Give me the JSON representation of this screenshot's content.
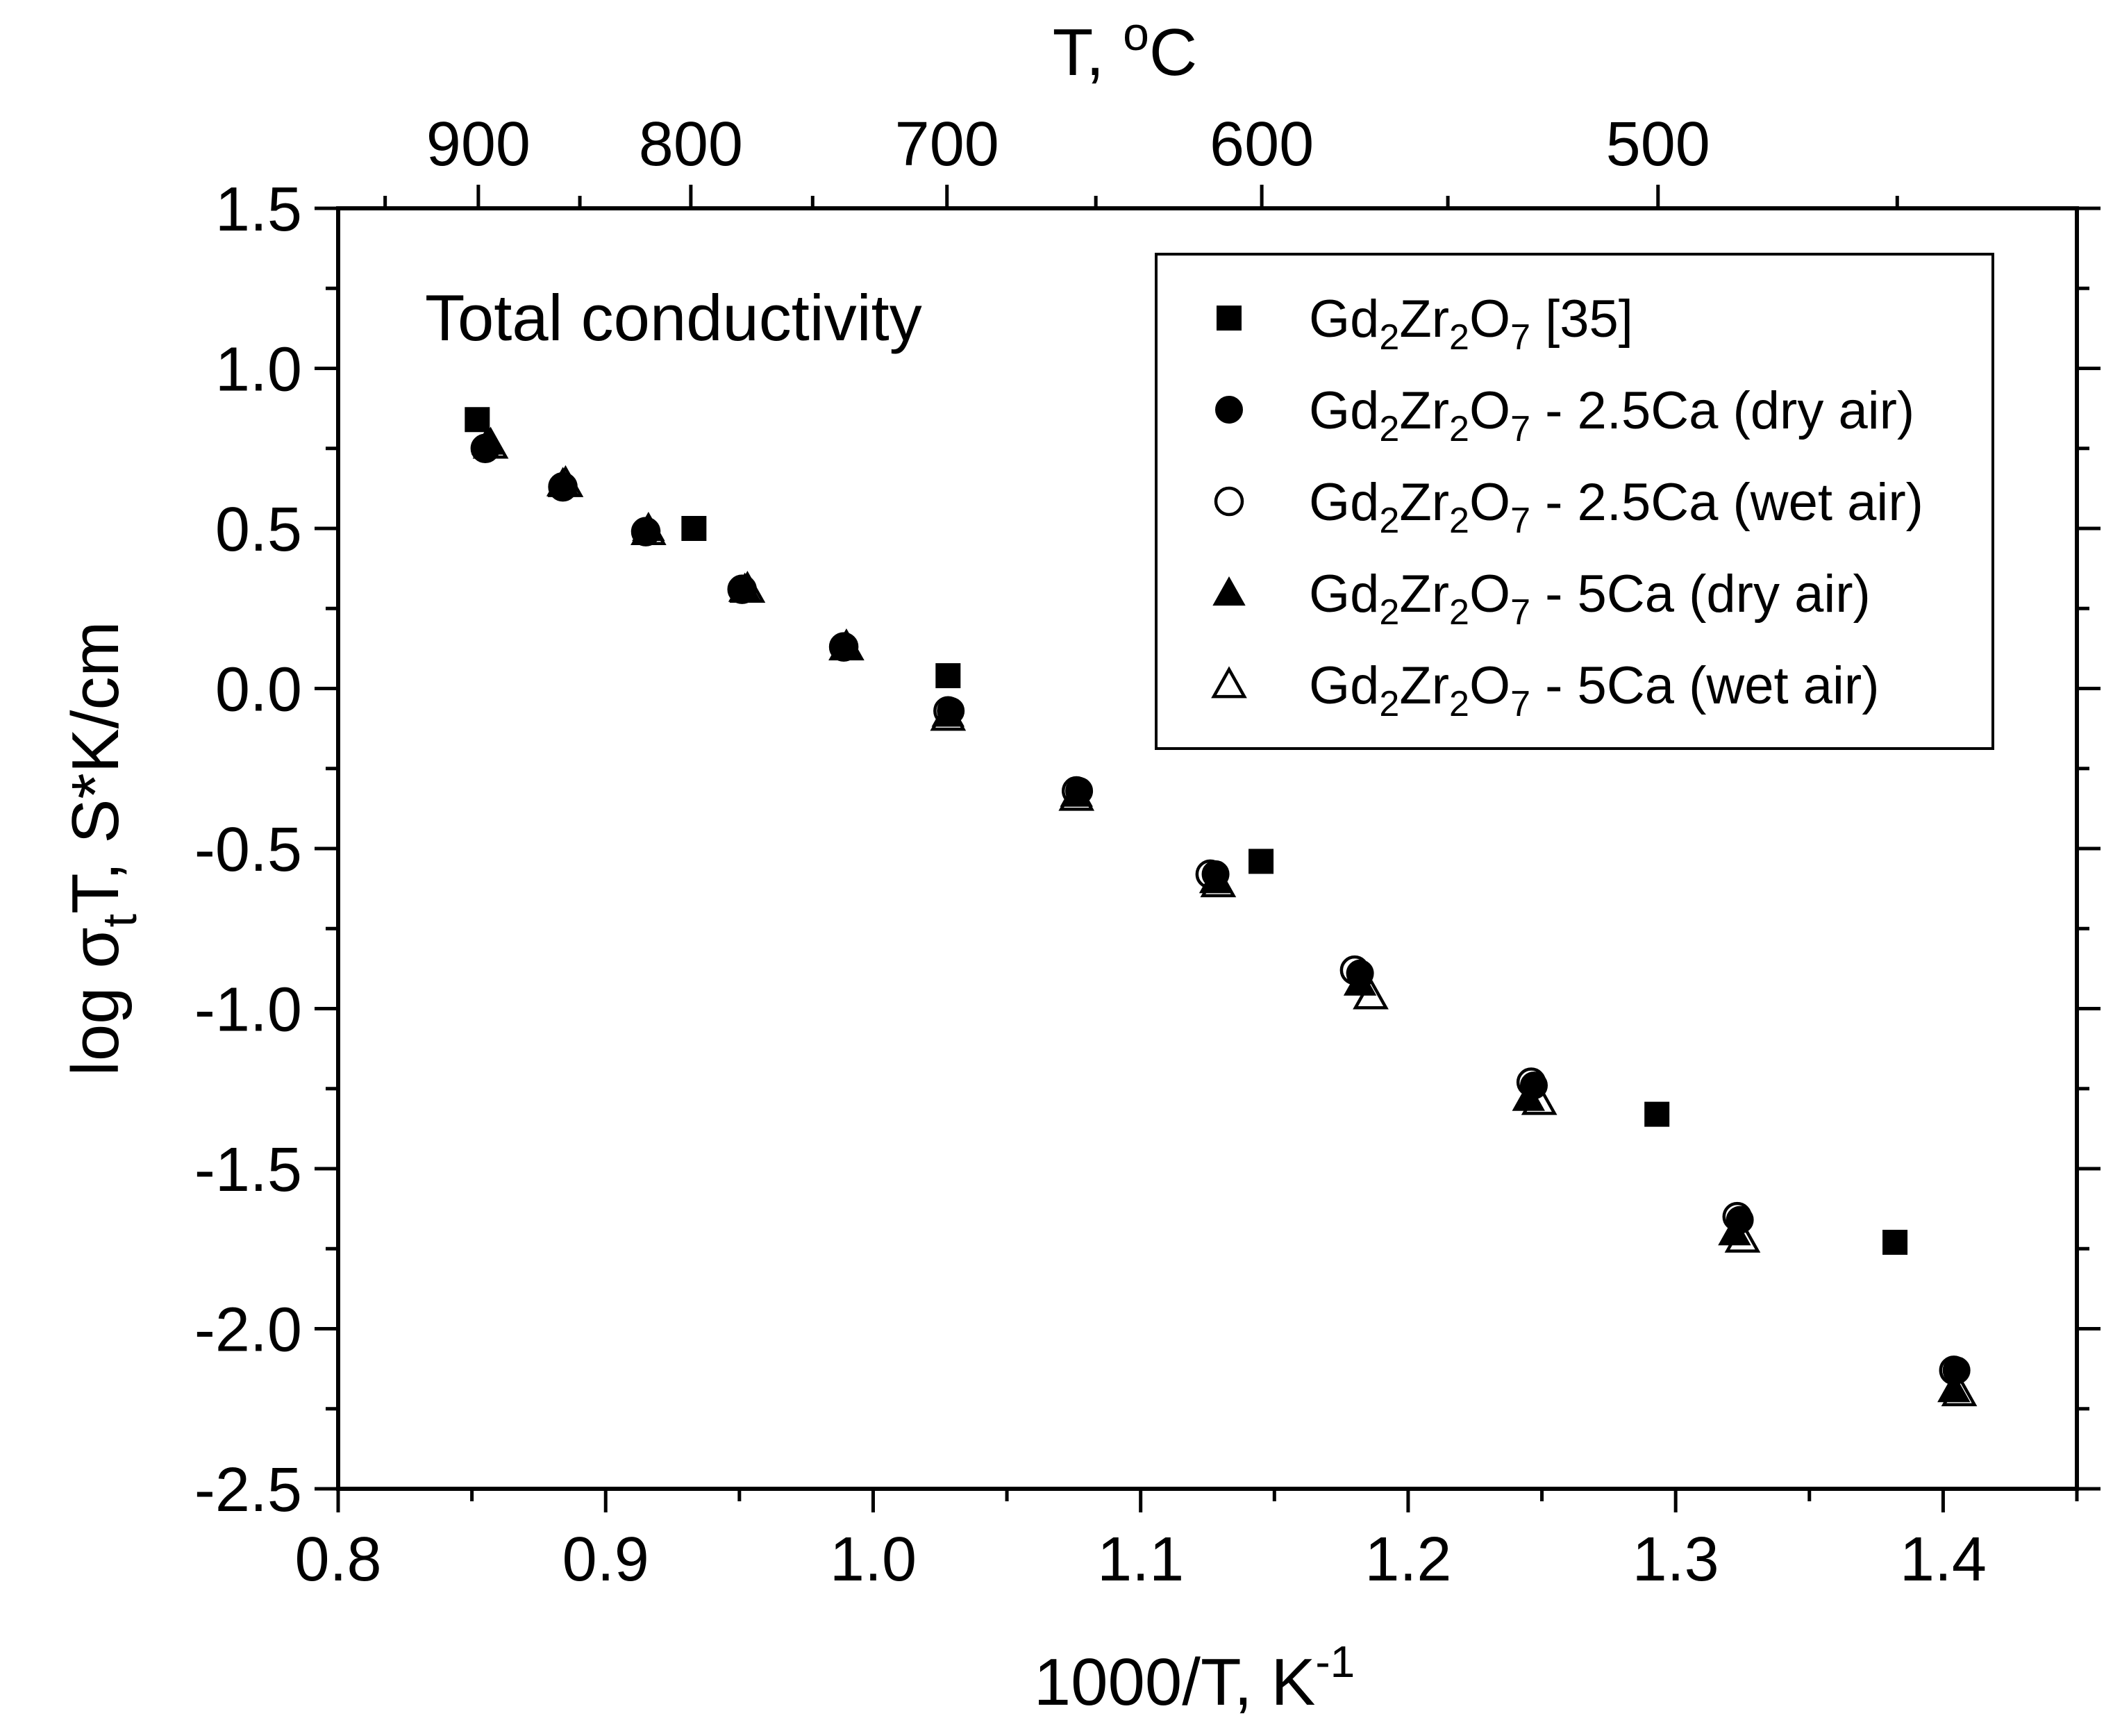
{
  "chart_data": {
    "type": "scatter",
    "title": "",
    "annotation": "Total conductivity",
    "xlabel": {
      "base": "1000/T, K",
      "sup": "-1"
    },
    "ylabel": {
      "prefix": "log σ",
      "sub": "t",
      "suffix": "T, S*K/cm"
    },
    "top_axis_label": {
      "base": "T, ",
      "sup": "o",
      "unit": "C"
    },
    "xlim": [
      0.8,
      1.45
    ],
    "ylim": [
      -2.5,
      1.5
    ],
    "x_ticks": [
      0.8,
      0.9,
      1.0,
      1.1,
      1.2,
      1.3,
      1.4
    ],
    "x_tick_labels": [
      "0.8",
      "0.9",
      "1.0",
      "1.1",
      "1.2",
      "1.3",
      "1.4"
    ],
    "y_ticks": [
      -2.5,
      -2.0,
      -1.5,
      -1.0,
      -0.5,
      0.0,
      0.5,
      1.0,
      1.5
    ],
    "y_tick_labels": [
      "-2.5",
      "-2.0",
      "-1.5",
      "-1.0",
      "-0.5",
      "0.0",
      "0.5",
      "1.0",
      "1.5"
    ],
    "top_ticks_celsius": [
      900,
      800,
      700,
      600,
      500
    ],
    "top_tick_labels": [
      "900",
      "800",
      "700",
      "600",
      "500"
    ],
    "grid": false,
    "legend_position": "top-right",
    "series": [
      {
        "name": "Gd2Zr2O7 [35]",
        "legend": {
          "a": "Gd",
          "s1": "2",
          "b": "Zr",
          "s2": "2",
          "c": "O",
          "s3": "7",
          "rest": " [35]"
        },
        "marker": "square-filled",
        "points": [
          [
            0.852,
            0.84
          ],
          [
            0.933,
            0.5
          ],
          [
            1.028,
            0.04
          ],
          [
            1.145,
            -0.54
          ],
          [
            1.293,
            -1.33
          ],
          [
            1.382,
            -1.73
          ]
        ]
      },
      {
        "name": "Gd2Zr2O7 - 2.5Ca (dry air)",
        "legend": {
          "a": "Gd",
          "s1": "2",
          "b": "Zr",
          "s2": "2",
          "c": "O",
          "s3": "7",
          "rest": " - 2.5Ca (dry air)"
        },
        "marker": "circle-filled",
        "points": [
          [
            0.855,
            0.75
          ],
          [
            0.884,
            0.63
          ],
          [
            0.915,
            0.49
          ],
          [
            0.951,
            0.31
          ],
          [
            0.989,
            0.13
          ],
          [
            1.029,
            -0.07
          ],
          [
            1.077,
            -0.32
          ],
          [
            1.128,
            -0.58
          ],
          [
            1.182,
            -0.89
          ],
          [
            1.247,
            -1.24
          ],
          [
            1.324,
            -1.66
          ],
          [
            1.405,
            -2.13
          ]
        ]
      },
      {
        "name": "Gd2Zr2O7 - 2.5Ca (wet air)",
        "legend": {
          "a": "Gd",
          "s1": "2",
          "b": "Zr",
          "s2": "2",
          "c": "O",
          "s3": "7",
          "rest": " - 2.5Ca (wet air)"
        },
        "marker": "circle-open",
        "points": [
          [
            0.855,
            0.75
          ],
          [
            0.884,
            0.63
          ],
          [
            0.915,
            0.49
          ],
          [
            0.951,
            0.31
          ],
          [
            0.989,
            0.13
          ],
          [
            1.028,
            -0.07
          ],
          [
            1.076,
            -0.32
          ],
          [
            1.126,
            -0.58
          ],
          [
            1.18,
            -0.88
          ],
          [
            1.246,
            -1.23
          ],
          [
            1.323,
            -1.65
          ],
          [
            1.404,
            -2.13
          ]
        ]
      },
      {
        "name": "Gd2Zr2O7 - 5Ca (dry air)",
        "legend": {
          "a": "Gd",
          "s1": "2",
          "b": "Zr",
          "s2": "2",
          "c": "O",
          "s3": "7",
          "rest": " - 5Ca (dry air)"
        },
        "marker": "triangle-filled",
        "points": [
          [
            0.856,
            0.77
          ],
          [
            0.884,
            0.64
          ],
          [
            0.916,
            0.5
          ],
          [
            0.952,
            0.31
          ],
          [
            0.99,
            0.13
          ],
          [
            1.028,
            -0.08
          ],
          [
            1.076,
            -0.33
          ],
          [
            1.128,
            -0.6
          ],
          [
            1.182,
            -0.92
          ],
          [
            1.245,
            -1.28
          ],
          [
            1.322,
            -1.7
          ],
          [
            1.404,
            -2.19
          ]
        ]
      },
      {
        "name": "Gd2Zr2O7 - 5Ca (wet air)",
        "legend": {
          "a": "Gd",
          "s1": "2",
          "b": "Zr",
          "s2": "2",
          "c": "O",
          "s3": "7",
          "rest": " - 5Ca (wet air)"
        },
        "marker": "triangle-open",
        "points": [
          [
            0.857,
            0.76
          ],
          [
            0.885,
            0.64
          ],
          [
            0.916,
            0.49
          ],
          [
            0.953,
            0.31
          ],
          [
            0.99,
            0.13
          ],
          [
            1.028,
            -0.09
          ],
          [
            1.076,
            -0.34
          ],
          [
            1.129,
            -0.61
          ],
          [
            1.186,
            -0.96
          ],
          [
            1.249,
            -1.29
          ],
          [
            1.325,
            -1.72
          ],
          [
            1.406,
            -2.2
          ]
        ]
      }
    ]
  }
}
